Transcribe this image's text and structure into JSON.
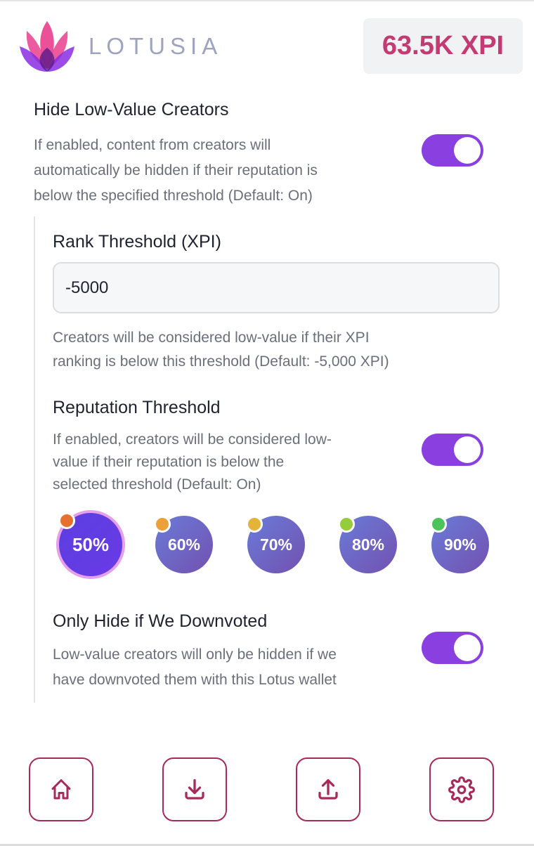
{
  "header": {
    "logo_text": "LOTUSIA",
    "balance": "63.5K XPI"
  },
  "hide_low_value": {
    "title": "Hide Low-Value Creators",
    "description": [
      "If enabled, content from creators will",
      "automatically be hidden if their reputation is",
      "below the specified threshold (Default: On)"
    ],
    "enabled": true
  },
  "rank_threshold": {
    "title": "Rank Threshold (XPI)",
    "value": "-5000",
    "help": [
      "Creators will be considered low-value if their XPI",
      "ranking is below this threshold (Default: -5,000 XPI)"
    ]
  },
  "reputation_threshold": {
    "title": "Reputation Threshold",
    "description": [
      "If enabled, creators will be considered low-",
      "value if their reputation is below the",
      "selected threshold (Default: On)"
    ],
    "enabled": true,
    "options": [
      {
        "label": "50%",
        "dot_color": "#e8702e",
        "selected": true
      },
      {
        "label": "60%",
        "dot_color": "#eda03a"
      },
      {
        "label": "70%",
        "dot_color": "#e4b33a"
      },
      {
        "label": "80%",
        "dot_color": "#94cc3a"
      },
      {
        "label": "90%",
        "dot_color": "#4cc45c"
      }
    ]
  },
  "only_downvoted": {
    "title": "Only Hide if We Downvoted",
    "description": [
      "Low-value creators will only be hidden if we",
      "have downvoted them with this Lotus wallet"
    ],
    "enabled": true
  },
  "nav": [
    {
      "icon": "home-icon"
    },
    {
      "icon": "download-icon"
    },
    {
      "icon": "upload-icon"
    },
    {
      "icon": "gear-icon"
    }
  ],
  "colors": {
    "accent": "#8a3fe0",
    "brand": "#c43a72",
    "nav": "#a8295a"
  }
}
